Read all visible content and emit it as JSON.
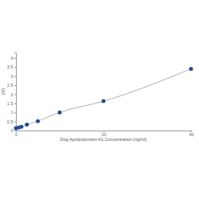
{
  "chart_data": {
    "type": "line",
    "x_label": "Dog Apolipoprotein A1 Concentration (ng/ml)",
    "y_label": "OD",
    "x": [
      0,
      0.625,
      1.25,
      2.5,
      5,
      10,
      20,
      40
    ],
    "y": [
      0.13,
      0.16,
      0.21,
      0.33,
      0.52,
      1.0,
      1.62,
      3.4
    ],
    "color": "#1f4e8c",
    "marker": "circle",
    "line_style": "solid",
    "grid": false,
    "xlim": [
      0,
      40
    ],
    "xticks": [
      0,
      20,
      40
    ],
    "ylim": [
      0,
      4.3
    ],
    "yticks": [
      0,
      0.5,
      1,
      1.5,
      2,
      2.5,
      3,
      3.5,
      4
    ]
  }
}
